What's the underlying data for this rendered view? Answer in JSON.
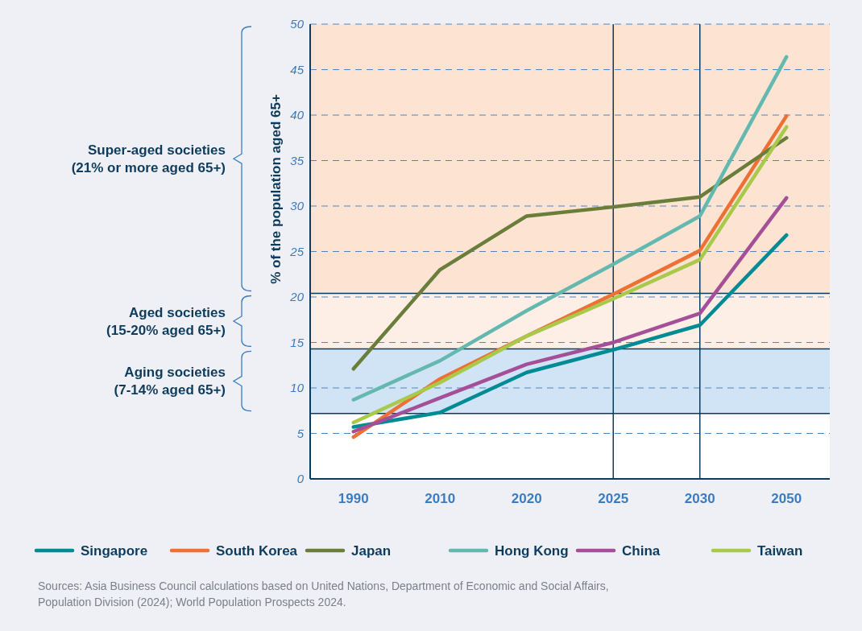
{
  "chart_data": {
    "type": "line",
    "ylabel": "% of the population aged 65+",
    "categories": [
      "1990",
      "2010",
      "2020",
      "2025",
      "2030",
      "2050"
    ],
    "series": [
      {
        "name": "Singapore",
        "color": "#008b95",
        "values": [
          5.7,
          7.3,
          11.7,
          14.2,
          16.9,
          26.8
        ]
      },
      {
        "name": "South Korea",
        "color": "#ef7035",
        "values": [
          4.6,
          11.0,
          15.7,
          20.3,
          25.1,
          39.9
        ]
      },
      {
        "name": "Japan",
        "color": "#6b7d3a",
        "values": [
          12.1,
          23.0,
          28.9,
          29.9,
          31.0,
          37.5
        ]
      },
      {
        "name": "Hong Kong",
        "color": "#63b8b0",
        "values": [
          8.7,
          13.0,
          18.5,
          23.6,
          28.9,
          46.4
        ]
      },
      {
        "name": "China",
        "color": "#a64f99",
        "values": [
          5.2,
          8.9,
          12.6,
          15.0,
          18.2,
          30.9
        ]
      },
      {
        "name": "Taiwan",
        "color": "#a8c94a",
        "values": [
          6.2,
          10.6,
          15.7,
          19.8,
          24.1,
          38.7
        ]
      }
    ],
    "ylim": [
      0,
      50
    ],
    "yticks": [
      0,
      5,
      10,
      15,
      20,
      25,
      30,
      35,
      40,
      45,
      50
    ],
    "grid": "y",
    "legend": "bottom",
    "marker": "none",
    "line_style": "solid",
    "bands": [
      {
        "axis": "y",
        "from": 20.4,
        "to": 50,
        "color": "#fce3d2"
      },
      {
        "axis": "y",
        "from": 14.3,
        "to": 20.4,
        "color": "#fdefe6"
      },
      {
        "axis": "y",
        "from": 7.2,
        "to": 14.3,
        "color": "#d1e4f6"
      }
    ],
    "ref_lines": [
      {
        "axis": "x",
        "value": "2025",
        "color": "#0d3b5c"
      },
      {
        "axis": "x",
        "value": "2030",
        "color": "#0d3b5c"
      }
    ],
    "annotations": [
      "Super-aged societies\n(21% or more aged 65+)",
      "Aged societies\n(15-20% aged 65+)",
      "Aging societies\n(7-14% aged 65+)",
      "Sources: Asia Business Council calculations based on United Nations, Department of Economic and Social Affairs,\nPopulation Division (2024); World Population Prospects 2024."
    ]
  }
}
